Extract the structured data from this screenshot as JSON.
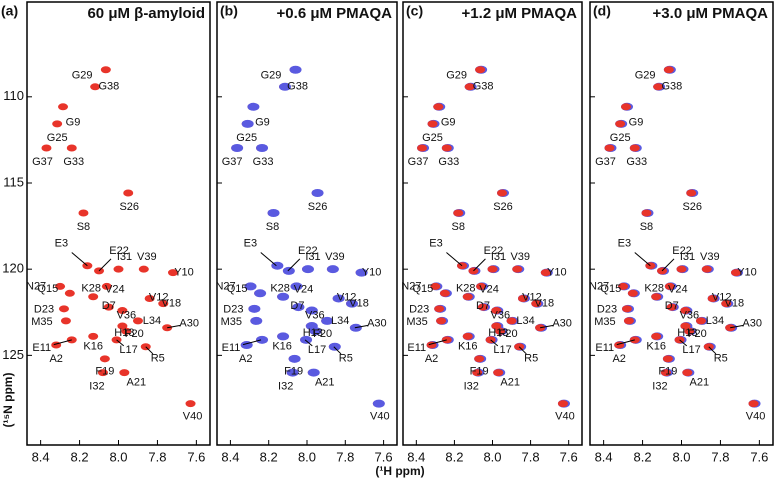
{
  "xlabel": "(¹H ppm)",
  "ylabel": "(¹⁵N ppm)",
  "ylim": [
    104.5,
    130.2
  ],
  "y_reversed": true,
  "yticks": [
    110,
    115,
    120,
    125
  ],
  "peaks": {
    "labels": [
      "G38",
      "G29",
      "G9",
      "G25",
      "G37",
      "G33",
      "S26",
      "S8",
      "E3",
      "E22",
      "I31",
      "V39",
      "Y10",
      "N27",
      "V24",
      "K28",
      "Q15",
      "V12",
      "V18",
      "D23",
      "D7",
      "V36",
      "M35",
      "L34",
      "H13",
      "F20",
      "E11",
      "K16",
      "A30",
      "R5",
      "L17",
      "F19",
      "A2",
      "I32",
      "A21",
      "V40"
    ],
    "x": [
      8.065,
      8.12,
      8.285,
      8.315,
      8.37,
      8.24,
      7.95,
      8.18,
      8.16,
      8.1,
      8.0,
      7.87,
      7.72,
      8.3,
      8.06,
      8.13,
      8.25,
      7.84,
      7.77,
      8.28,
      8.05,
      7.98,
      8.27,
      7.9,
      7.98,
      7.96,
      8.24,
      8.13,
      7.75,
      7.86,
      8.01,
      8.07,
      8.32,
      8.08,
      7.97,
      7.63
    ],
    "y": [
      108.43,
      109.42,
      110.58,
      111.57,
      112.97,
      112.97,
      115.58,
      116.74,
      119.8,
      120.1,
      120.0,
      120.0,
      120.2,
      121.0,
      121.0,
      121.6,
      121.4,
      121.7,
      122.0,
      122.3,
      122.2,
      122.4,
      123.0,
      123.0,
      123.3,
      123.6,
      124.1,
      123.9,
      123.4,
      124.5,
      124.1,
      125.2,
      124.4,
      126.0,
      126.0,
      127.8
    ]
  },
  "chart_data": [
    {
      "type": "scatter",
      "panel": "(a)",
      "title": "60 μM β-amyloid",
      "xlim": [
        7.53,
        8.47
      ],
      "x_reversed": true,
      "xticks": [
        {
          "value": 8.4,
          "label": "8.4"
        },
        {
          "value": 8.2,
          "label": "8.2"
        },
        {
          "value": 8.0,
          "label": "8.0"
        },
        {
          "value": 7.8,
          "label": "7.8"
        },
        {
          "value": 7.6,
          "label": "7.6"
        }
      ],
      "colors": [
        "#e8342a"
      ]
    },
    {
      "type": "scatter",
      "panel": "(b)",
      "title": "+0.6 μM PMAQA",
      "xlim": [
        7.53,
        8.47
      ],
      "x_reversed": true,
      "xticks": [
        {
          "value": 8.4,
          "label": "8.4"
        },
        {
          "value": 8.2,
          "label": "8.2"
        },
        {
          "value": 8.0,
          "label": "8.0"
        },
        {
          "value": 7.8,
          "label": "7.8"
        },
        {
          "value": 7.6,
          "label": "7.6"
        }
      ],
      "colors": [
        "#e8342a",
        "#5a5ae0"
      ]
    },
    {
      "type": "scatter",
      "panel": "(c)",
      "title": "+1.2 μM PMAQA",
      "xlim": [
        7.53,
        8.47
      ],
      "x_reversed": true,
      "xticks": [
        {
          "value": 8.4,
          "label": "8.4"
        },
        {
          "value": 8.2,
          "label": "8.2"
        },
        {
          "value": 8.0,
          "label": "8.0"
        },
        {
          "value": 7.8,
          "label": "7.8"
        },
        {
          "value": 7.6,
          "label": "7.6"
        }
      ],
      "colors": [
        "#5a5ae0",
        "#e8342a"
      ]
    },
    {
      "type": "scatter",
      "panel": "(d)",
      "title": "+3.0 μM PMAQA",
      "xlim": [
        7.53,
        8.47
      ],
      "x_reversed": true,
      "xticks": [
        {
          "value": 8.4,
          "label": "8.4"
        },
        {
          "value": 8.2,
          "label": "8.2"
        },
        {
          "value": 8.0,
          "label": "8.0"
        },
        {
          "value": 7.8,
          "label": "7.8"
        },
        {
          "value": 7.6,
          "label": "7.6"
        }
      ],
      "colors": [
        "#5a5ae0",
        "#e8342a"
      ]
    }
  ]
}
